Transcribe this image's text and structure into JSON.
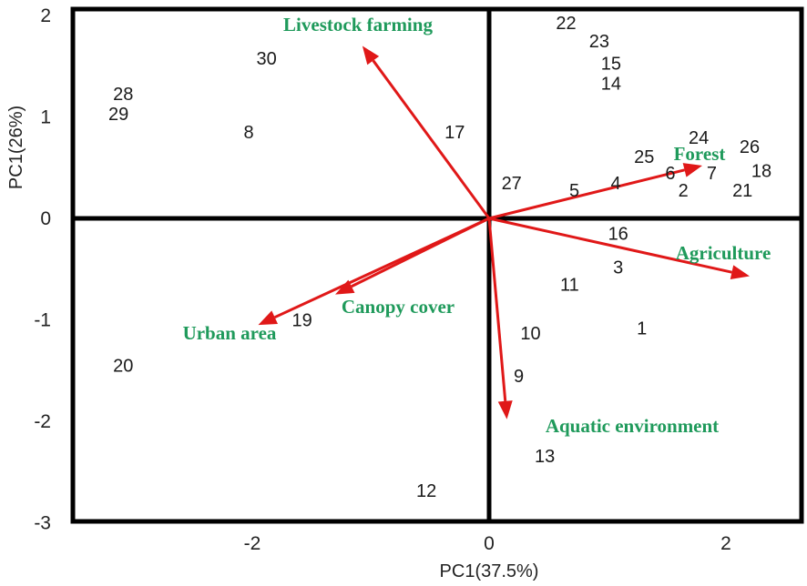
{
  "chart_data": {
    "type": "scatter",
    "subtype": "pca-biplot",
    "xlabel": "PC1(37.5%)",
    "ylabel": "PC1(26%)",
    "xlim": [
      -3.5,
      2.6
    ],
    "ylim": [
      -3.05,
      2.1
    ],
    "xticks": [
      -2,
      0,
      2
    ],
    "yticks": [
      2,
      1,
      0,
      -1,
      -2,
      -3
    ],
    "grid": false,
    "colors": {
      "arrow": "#e01818",
      "variable_label": "#1f9a5b",
      "frame": "#000000"
    },
    "points": [
      {
        "label": "1",
        "x": 1.29,
        "y": -1.08
      },
      {
        "label": "2",
        "x": 1.64,
        "y": 0.28
      },
      {
        "label": "3",
        "x": 1.09,
        "y": -0.48
      },
      {
        "label": "4",
        "x": 1.07,
        "y": 0.35
      },
      {
        "label": "5",
        "x": 0.72,
        "y": 0.28
      },
      {
        "label": "6",
        "x": 1.53,
        "y": 0.45
      },
      {
        "label": "7",
        "x": 1.88,
        "y": 0.45
      },
      {
        "label": "8",
        "x": -2.03,
        "y": 0.85
      },
      {
        "label": "9",
        "x": 0.25,
        "y": -1.55
      },
      {
        "label": "10",
        "x": 0.35,
        "y": -1.13
      },
      {
        "label": "11",
        "x": 0.68,
        "y": -0.65
      },
      {
        "label": "12",
        "x": -0.53,
        "y": -2.68
      },
      {
        "label": "13",
        "x": 0.47,
        "y": -2.34
      },
      {
        "label": "14",
        "x": 1.03,
        "y": 1.33
      },
      {
        "label": "15",
        "x": 1.03,
        "y": 1.53
      },
      {
        "label": "16",
        "x": 1.09,
        "y": -0.15
      },
      {
        "label": "17",
        "x": -0.29,
        "y": 0.85
      },
      {
        "label": "18",
        "x": 2.3,
        "y": 0.47
      },
      {
        "label": "19",
        "x": -1.58,
        "y": -1.0
      },
      {
        "label": "20",
        "x": -3.09,
        "y": -1.45
      },
      {
        "label": "21",
        "x": 2.14,
        "y": 0.28
      },
      {
        "label": "22",
        "x": 0.65,
        "y": 1.93
      },
      {
        "label": "23",
        "x": 0.93,
        "y": 1.75
      },
      {
        "label": "24",
        "x": 1.77,
        "y": 0.8
      },
      {
        "label": "25",
        "x": 1.31,
        "y": 0.61
      },
      {
        "label": "26",
        "x": 2.2,
        "y": 0.71
      },
      {
        "label": "27",
        "x": 0.19,
        "y": 0.35
      },
      {
        "label": "28",
        "x": -3.09,
        "y": 1.23
      },
      {
        "label": "29",
        "x": -3.13,
        "y": 1.03
      },
      {
        "label": "30",
        "x": -1.88,
        "y": 1.58
      }
    ],
    "arrows": [
      {
        "name": "Livestock farming",
        "x": -1.07,
        "y": 1.7
      },
      {
        "name": "Forest",
        "x": 1.8,
        "y": 0.52
      },
      {
        "name": "Agriculture",
        "x": 2.2,
        "y": -0.57
      },
      {
        "name": "Canopy cover",
        "x": -1.3,
        "y": -0.75
      },
      {
        "name": "Urban area",
        "x": -1.95,
        "y": -1.05
      },
      {
        "name": "Aquatic environment",
        "x": 0.15,
        "y": -1.98
      }
    ]
  }
}
